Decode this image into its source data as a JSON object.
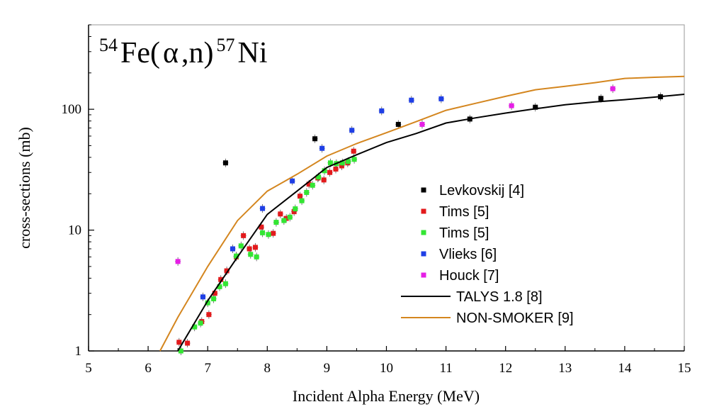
{
  "chart_data": {
    "type": "scatter",
    "title_parts": {
      "mass_a": "54",
      "target": "Fe(",
      "particle": "α",
      "rest": ",n)",
      "mass_b": "57",
      "product": "Ni"
    },
    "xlabel": "Incident Alpha Energy (MeV)",
    "ylabel": "cross-sections (mb)",
    "xlim": [
      5,
      15
    ],
    "ylim": [
      1,
      500
    ],
    "yscale": "log",
    "x_ticks": [
      5,
      6,
      7,
      8,
      9,
      10,
      11,
      12,
      13,
      14,
      15
    ],
    "y_ticks": [
      {
        "value": 1,
        "label": "1"
      },
      {
        "value": 10,
        "label": "10"
      },
      {
        "value": 100,
        "label": "100"
      }
    ],
    "grid": false,
    "legend_position": "right",
    "series": [
      {
        "name": "Levkovskij [4]",
        "kind": "points",
        "color": "#000000",
        "points": [
          [
            7.3,
            36
          ],
          [
            8.8,
            57
          ],
          [
            10.2,
            75
          ],
          [
            11.4,
            83
          ],
          [
            12.5,
            104
          ],
          [
            13.6,
            123
          ],
          [
            14.6,
            127
          ]
        ]
      },
      {
        "name": "Tims [5]",
        "kind": "points",
        "color": "#e31a1c",
        "points": [
          [
            6.52,
            1.18
          ],
          [
            6.66,
            1.16
          ],
          [
            6.9,
            1.75
          ],
          [
            7.02,
            2.0
          ],
          [
            7.12,
            3.0
          ],
          [
            7.22,
            3.9
          ],
          [
            7.32,
            4.6
          ],
          [
            7.48,
            6.0
          ],
          [
            7.6,
            9.0
          ],
          [
            7.7,
            7.0
          ],
          [
            7.8,
            7.2
          ],
          [
            7.9,
            10.6
          ],
          [
            8.1,
            9.4
          ],
          [
            8.22,
            13.6
          ],
          [
            8.32,
            12.5
          ],
          [
            8.45,
            14.2
          ],
          [
            8.55,
            19.1
          ],
          [
            8.7,
            24.0
          ],
          [
            8.85,
            27.0
          ],
          [
            8.95,
            26.0
          ],
          [
            9.05,
            30.0
          ],
          [
            9.15,
            32.0
          ],
          [
            9.25,
            34.0
          ],
          [
            9.35,
            36.0
          ],
          [
            9.45,
            45.0
          ]
        ]
      },
      {
        "name": "Tims [5]",
        "kind": "points",
        "color": "#33e633",
        "points": [
          [
            6.55,
            1.0
          ],
          [
            6.78,
            1.58
          ],
          [
            6.88,
            1.7
          ],
          [
            7.0,
            2.5
          ],
          [
            7.1,
            2.7
          ],
          [
            7.2,
            3.4
          ],
          [
            7.3,
            3.6
          ],
          [
            7.48,
            6.1
          ],
          [
            7.56,
            7.4
          ],
          [
            7.72,
            6.3
          ],
          [
            7.82,
            6.0
          ],
          [
            7.92,
            9.5
          ],
          [
            8.02,
            9.2
          ],
          [
            8.15,
            11.6
          ],
          [
            8.28,
            12.0
          ],
          [
            8.38,
            12.8
          ],
          [
            8.47,
            15.0
          ],
          [
            8.58,
            17.5
          ],
          [
            8.66,
            20.5
          ],
          [
            8.76,
            23.5
          ],
          [
            8.86,
            27.5
          ],
          [
            8.96,
            31.0
          ],
          [
            9.06,
            36.0
          ],
          [
            9.16,
            35.5
          ],
          [
            9.26,
            36.0
          ],
          [
            9.36,
            37.0
          ],
          [
            9.46,
            38.5
          ]
        ]
      },
      {
        "name": "Vlieks [6]",
        "kind": "points",
        "color": "#1f3fe6",
        "points": [
          [
            6.92,
            2.8
          ],
          [
            7.42,
            7.0
          ],
          [
            7.92,
            15.1
          ],
          [
            8.42,
            25.5
          ],
          [
            8.92,
            47.5
          ],
          [
            9.42,
            67.0
          ],
          [
            9.92,
            97.0
          ],
          [
            10.42,
            119.0
          ],
          [
            10.92,
            122.0
          ]
        ]
      },
      {
        "name": "Houck [7]",
        "kind": "points",
        "color": "#e61fe6",
        "points": [
          [
            6.5,
            5.5
          ],
          [
            10.6,
            75.0
          ],
          [
            12.1,
            107.0
          ],
          [
            13.8,
            148.0
          ]
        ]
      },
      {
        "name": "TALYS 1.8 [8]",
        "kind": "line",
        "color": "#000000",
        "points": [
          [
            6.5,
            1.0
          ],
          [
            7.0,
            2.6
          ],
          [
            7.5,
            6.0
          ],
          [
            8.0,
            13.5
          ],
          [
            8.5,
            21.0
          ],
          [
            9.0,
            33.0
          ],
          [
            9.5,
            42.0
          ],
          [
            10.0,
            53.0
          ],
          [
            10.5,
            63.0
          ],
          [
            11.0,
            77.0
          ],
          [
            11.5,
            85.0
          ],
          [
            12.0,
            93.0
          ],
          [
            12.5,
            101.0
          ],
          [
            13.0,
            109.0
          ],
          [
            13.5,
            115.0
          ],
          [
            14.0,
            120.0
          ],
          [
            14.5,
            126.0
          ],
          [
            15.0,
            133.0
          ]
        ]
      },
      {
        "name": "NON-SMOKER [9]",
        "kind": "line",
        "color": "#d4861f",
        "points": [
          [
            6.2,
            1.0
          ],
          [
            6.5,
            1.9
          ],
          [
            7.0,
            5.0
          ],
          [
            7.5,
            12.0
          ],
          [
            8.0,
            21.0
          ],
          [
            8.5,
            29.0
          ],
          [
            9.0,
            41.0
          ],
          [
            9.5,
            52.0
          ],
          [
            10.0,
            64.0
          ],
          [
            10.5,
            79.0
          ],
          [
            11.0,
            98.0
          ],
          [
            11.5,
            112.0
          ],
          [
            12.0,
            128.0
          ],
          [
            12.5,
            145.0
          ],
          [
            13.0,
            155.0
          ],
          [
            13.5,
            166.0
          ],
          [
            14.0,
            180.0
          ],
          [
            14.5,
            184.0
          ],
          [
            15.0,
            187.0
          ]
        ]
      }
    ]
  }
}
